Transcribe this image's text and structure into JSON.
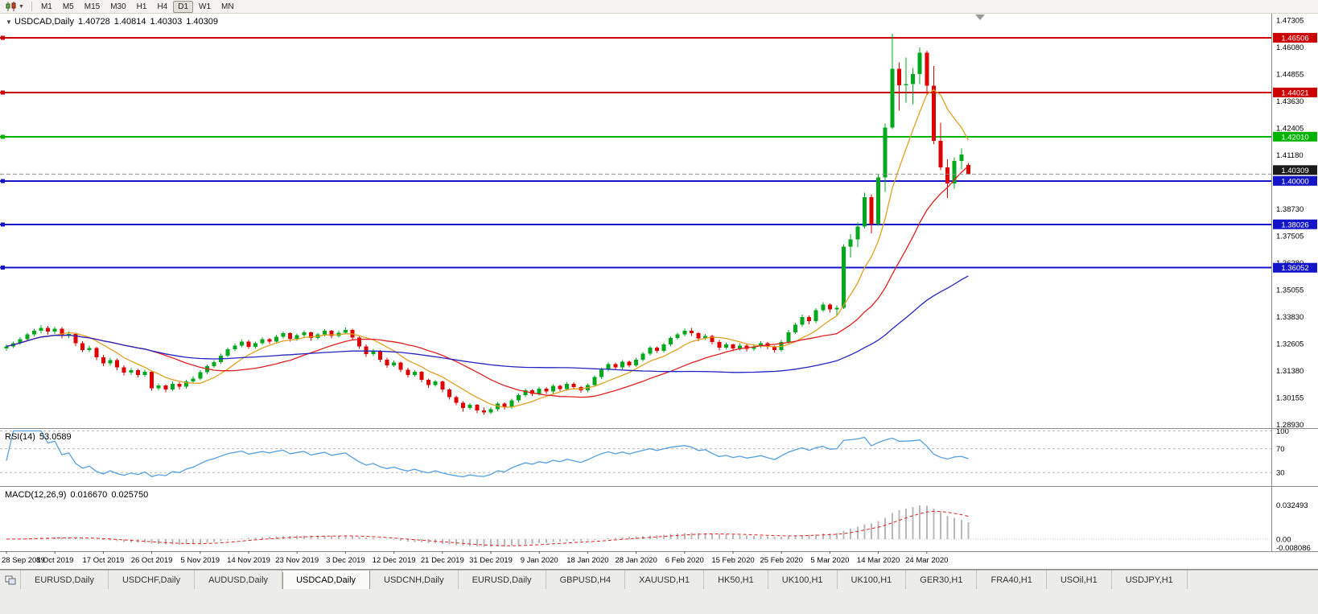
{
  "toolbar": {
    "timeframes": [
      "M1",
      "M5",
      "M15",
      "M30",
      "H1",
      "H4",
      "D1",
      "W1",
      "MN"
    ],
    "active": "D1"
  },
  "bottom_tabs": {
    "active_index": 3,
    "tabs": [
      "EURUSD,Daily",
      "USDCHF,Daily",
      "AUDUSD,Daily",
      "USDCAD,Daily",
      "USDCNH,Daily",
      "EURUSD,Daily",
      "GBPUSD,H4",
      "XAUUSD,H1",
      "HK50,H1",
      "UK100,H1",
      "UK100,H1",
      "GER30,H1",
      "FRA40,H1",
      "USOil,H1",
      "USDJPY,H1"
    ]
  },
  "chart_data": {
    "type": "candlestick",
    "symbol": "USDCAD",
    "timeframe": "Daily",
    "title": {
      "symbol": "USDCAD,Daily",
      "open": "1.40728",
      "high": "1.40814",
      "low": "1.40303",
      "close": "1.40309"
    },
    "up_color": "#00A81E",
    "down_color": "#E00000",
    "price_scale": {
      "min": 1.288,
      "max": 1.476
    },
    "price_axis_labels": [
      "1.47305",
      "1.46080",
      "1.44855",
      "1.43630",
      "1.42405",
      "1.41180",
      "1.39955",
      "1.38730",
      "1.37505",
      "1.36280",
      "1.35055",
      "1.33830",
      "1.32605",
      "1.31380",
      "1.30155",
      "1.28930"
    ],
    "hlines": [
      {
        "price": 1.46506,
        "label": "1.46506",
        "color": "#CC0000"
      },
      {
        "price": 1.44021,
        "label": "1.44021",
        "color": "#CC0000"
      },
      {
        "price": 1.4201,
        "label": "1.42010",
        "color": "#00B400"
      },
      {
        "price": 1.4,
        "label": "1.40000",
        "color": "#1414C8"
      },
      {
        "price": 1.38026,
        "label": "1.38026",
        "color": "#1414C8"
      },
      {
        "price": 1.36052,
        "label": "1.36052",
        "color": "#1414C8"
      }
    ],
    "current_price": {
      "price": 1.40309,
      "label": "1.40309",
      "badge_color": "#1A1A1A",
      "line_color": "#909090"
    },
    "moving_averages": [
      {
        "period": 8,
        "color": "#E0A020",
        "name": "fast-ma"
      },
      {
        "period": 21,
        "color": "#E02020",
        "name": "mid-ma"
      },
      {
        "period": 55,
        "color": "#2424C0",
        "name": "slow-ma"
      }
    ],
    "bars_per_label": 7,
    "time_axis_labels": [
      "28 Sep 2019",
      "8 Oct 2019",
      "17 Oct 2019",
      "26 Oct 2019",
      "5 Nov 2019",
      "14 Nov 2019",
      "23 Nov 2019",
      "3 Dec 2019",
      "12 Dec 2019",
      "21 Dec 2019",
      "31 Dec 2019",
      "9 Jan 2020",
      "18 Jan 2020",
      "28 Jan 2020",
      "6 Feb 2020",
      "15 Feb 2020",
      "25 Feb 2020",
      "5 Mar 2020",
      "14 Mar 2020",
      "24 Mar 2020"
    ],
    "rsi": {
      "name": "RSI(14)",
      "value": "53.0589",
      "period": 14,
      "color": "#55A0E0",
      "levels": [
        100,
        70,
        30
      ],
      "scale": {
        "min": 10,
        "max": 102
      }
    },
    "macd": {
      "name": "MACD(12,26,9)",
      "value_main": "0.016670",
      "value_signal": "0.025750",
      "fast": 12,
      "slow": 26,
      "signal": 9,
      "hist_color": "#B8B8B8",
      "signal_color": "#E02020",
      "axis_labels": {
        "max": "0.032493",
        "zero": "0.00",
        "min": "-0.008086"
      },
      "scale": {
        "min": -0.01,
        "max": 0.049
      }
    },
    "candles": [
      [
        1.3238,
        1.3256,
        1.3228,
        1.3248
      ],
      [
        1.3248,
        1.327,
        1.324,
        1.3262
      ],
      [
        1.3262,
        1.329,
        1.3254,
        1.3281
      ],
      [
        1.3281,
        1.331,
        1.3272,
        1.3302
      ],
      [
        1.3302,
        1.3328,
        1.3294,
        1.3318
      ],
      [
        1.3318,
        1.3344,
        1.3308,
        1.3332
      ],
      [
        1.3332,
        1.334,
        1.33,
        1.3315
      ],
      [
        1.3315,
        1.3338,
        1.3305,
        1.3328
      ],
      [
        1.3328,
        1.3336,
        1.3284,
        1.3296
      ],
      [
        1.3296,
        1.3316,
        1.3286,
        1.3305
      ],
      [
        1.3305,
        1.331,
        1.325,
        1.3262
      ],
      [
        1.3262,
        1.3272,
        1.3222,
        1.3232
      ],
      [
        1.3232,
        1.3252,
        1.3222,
        1.3241
      ],
      [
        1.3241,
        1.3246,
        1.3186,
        1.3198
      ],
      [
        1.3198,
        1.321,
        1.3158,
        1.317
      ],
      [
        1.317,
        1.3196,
        1.316,
        1.3186
      ],
      [
        1.3186,
        1.3192,
        1.314,
        1.3152
      ],
      [
        1.3152,
        1.3162,
        1.3116,
        1.3128
      ],
      [
        1.3128,
        1.315,
        1.3118,
        1.314
      ],
      [
        1.314,
        1.3146,
        1.3106,
        1.3118
      ],
      [
        1.3118,
        1.3142,
        1.3108,
        1.3132
      ],
      [
        1.3132,
        1.3138,
        1.3046,
        1.3058
      ],
      [
        1.3058,
        1.308,
        1.3048,
        1.307
      ],
      [
        1.307,
        1.3076,
        1.304,
        1.3052
      ],
      [
        1.3052,
        1.3088,
        1.3044,
        1.3078
      ],
      [
        1.3078,
        1.3084,
        1.3052,
        1.3064
      ],
      [
        1.3064,
        1.3096,
        1.3056,
        1.3088
      ],
      [
        1.3088,
        1.3112,
        1.308,
        1.3102
      ],
      [
        1.3102,
        1.314,
        1.3094,
        1.313
      ],
      [
        1.313,
        1.3166,
        1.3122,
        1.3158
      ],
      [
        1.3158,
        1.3186,
        1.315,
        1.3176
      ],
      [
        1.3176,
        1.3214,
        1.3168,
        1.3205
      ],
      [
        1.3205,
        1.3242,
        1.3198,
        1.3234
      ],
      [
        1.3234,
        1.326,
        1.3226,
        1.3252
      ],
      [
        1.3252,
        1.3278,
        1.3244,
        1.327
      ],
      [
        1.327,
        1.3276,
        1.3236,
        1.3246
      ],
      [
        1.3246,
        1.327,
        1.3238,
        1.3262
      ],
      [
        1.3262,
        1.329,
        1.3254,
        1.3281
      ],
      [
        1.3281,
        1.3286,
        1.3258,
        1.327
      ],
      [
        1.327,
        1.33,
        1.3262,
        1.3292
      ],
      [
        1.3292,
        1.3316,
        1.3284,
        1.3308
      ],
      [
        1.3308,
        1.3312,
        1.327,
        1.3282
      ],
      [
        1.3282,
        1.3306,
        1.3274,
        1.3298
      ],
      [
        1.3298,
        1.332,
        1.329,
        1.3312
      ],
      [
        1.3312,
        1.3316,
        1.3274,
        1.3286
      ],
      [
        1.3286,
        1.331,
        1.3278,
        1.3302
      ],
      [
        1.3302,
        1.3326,
        1.3294,
        1.3318
      ],
      [
        1.3318,
        1.3322,
        1.3284,
        1.3296
      ],
      [
        1.3296,
        1.3318,
        1.3288,
        1.331
      ],
      [
        1.331,
        1.3334,
        1.3302,
        1.3322
      ],
      [
        1.3322,
        1.3328,
        1.3276,
        1.3288
      ],
      [
        1.3288,
        1.3294,
        1.3236,
        1.3248
      ],
      [
        1.3248,
        1.3256,
        1.32,
        1.3212
      ],
      [
        1.3212,
        1.3236,
        1.3204,
        1.3228
      ],
      [
        1.3228,
        1.3232,
        1.3176,
        1.3188
      ],
      [
        1.3188,
        1.3196,
        1.315,
        1.3162
      ],
      [
        1.3162,
        1.3184,
        1.3154,
        1.3174
      ],
      [
        1.3174,
        1.3178,
        1.313,
        1.3142
      ],
      [
        1.3142,
        1.315,
        1.3106,
        1.3118
      ],
      [
        1.3118,
        1.314,
        1.311,
        1.3132
      ],
      [
        1.3132,
        1.3136,
        1.3084,
        1.3096
      ],
      [
        1.3096,
        1.3102,
        1.306,
        1.3072
      ],
      [
        1.3072,
        1.3096,
        1.3064,
        1.3088
      ],
      [
        1.3088,
        1.3092,
        1.304,
        1.3052
      ],
      [
        1.3052,
        1.3058,
        1.3006,
        1.3018
      ],
      [
        1.3018,
        1.3024,
        1.298,
        1.2992
      ],
      [
        1.2992,
        1.2998,
        1.2952,
        1.2968
      ],
      [
        1.2968,
        1.299,
        1.296,
        1.2982
      ],
      [
        1.2982,
        1.2986,
        1.2944,
        1.2956
      ],
      [
        1.2956,
        1.297,
        1.2936,
        1.2948
      ],
      [
        1.2948,
        1.2972,
        1.294,
        1.2962
      ],
      [
        1.2962,
        1.2996,
        1.2954,
        1.2988
      ],
      [
        1.2988,
        1.2994,
        1.296,
        1.2972
      ],
      [
        1.2972,
        1.301,
        1.2964,
        1.3002
      ],
      [
        1.3002,
        1.3034,
        1.2994,
        1.3026
      ],
      [
        1.3026,
        1.3056,
        1.3018,
        1.3048
      ],
      [
        1.3048,
        1.3054,
        1.3022,
        1.3032
      ],
      [
        1.3032,
        1.3064,
        1.3024,
        1.3056
      ],
      [
        1.3056,
        1.3062,
        1.3032,
        1.3042
      ],
      [
        1.3042,
        1.3076,
        1.3034,
        1.3068
      ],
      [
        1.3068,
        1.3074,
        1.3044,
        1.3054
      ],
      [
        1.3054,
        1.3086,
        1.3046,
        1.3078
      ],
      [
        1.3078,
        1.3084,
        1.3052,
        1.3062
      ],
      [
        1.3062,
        1.3068,
        1.3038,
        1.3048
      ],
      [
        1.3048,
        1.308,
        1.304,
        1.3072
      ],
      [
        1.3072,
        1.3116,
        1.3064,
        1.3108
      ],
      [
        1.3108,
        1.315,
        1.31,
        1.3142
      ],
      [
        1.3142,
        1.3176,
        1.3134,
        1.3168
      ],
      [
        1.3168,
        1.3174,
        1.3142,
        1.3152
      ],
      [
        1.3152,
        1.3186,
        1.3144,
        1.3178
      ],
      [
        1.3178,
        1.3184,
        1.3152,
        1.3162
      ],
      [
        1.3162,
        1.3196,
        1.3154,
        1.3188
      ],
      [
        1.3188,
        1.3222,
        1.318,
        1.3214
      ],
      [
        1.3214,
        1.325,
        1.3206,
        1.3242
      ],
      [
        1.3242,
        1.3248,
        1.3218,
        1.3228
      ],
      [
        1.3228,
        1.3264,
        1.322,
        1.3256
      ],
      [
        1.3256,
        1.3294,
        1.3248,
        1.3286
      ],
      [
        1.3286,
        1.331,
        1.3278,
        1.3302
      ],
      [
        1.3302,
        1.333,
        1.3294,
        1.3318
      ],
      [
        1.3318,
        1.3332,
        1.3296,
        1.3308
      ],
      [
        1.3308,
        1.3314,
        1.3272,
        1.3284
      ],
      [
        1.3284,
        1.3304,
        1.3276,
        1.3296
      ],
      [
        1.3296,
        1.33,
        1.3256,
        1.3268
      ],
      [
        1.3268,
        1.3276,
        1.323,
        1.3242
      ],
      [
        1.3242,
        1.3266,
        1.3234,
        1.3256
      ],
      [
        1.3256,
        1.326,
        1.3226,
        1.3238
      ],
      [
        1.3238,
        1.3262,
        1.323,
        1.3252
      ],
      [
        1.3252,
        1.3258,
        1.3224,
        1.3236
      ],
      [
        1.3236,
        1.3258,
        1.3228,
        1.3248
      ],
      [
        1.3248,
        1.3272,
        1.324,
        1.3262
      ],
      [
        1.3262,
        1.3268,
        1.3234,
        1.3246
      ],
      [
        1.3246,
        1.3252,
        1.322,
        1.3232
      ],
      [
        1.3232,
        1.3276,
        1.3224,
        1.3268
      ],
      [
        1.3268,
        1.3322,
        1.326,
        1.3312
      ],
      [
        1.3312,
        1.3356,
        1.3304,
        1.3346
      ],
      [
        1.3346,
        1.3392,
        1.3338,
        1.3382
      ],
      [
        1.3382,
        1.3388,
        1.3348,
        1.3362
      ],
      [
        1.3362,
        1.3422,
        1.3354,
        1.3412
      ],
      [
        1.3412,
        1.3448,
        1.3404,
        1.3438
      ],
      [
        1.3438,
        1.3444,
        1.3402,
        1.3416
      ],
      [
        1.3416,
        1.3434,
        1.3388,
        1.3424
      ],
      [
        1.3424,
        1.3712,
        1.3418,
        1.3702
      ],
      [
        1.3702,
        1.3758,
        1.3652,
        1.3734
      ],
      [
        1.3734,
        1.381,
        1.37,
        1.3792
      ],
      [
        1.3792,
        1.3946,
        1.3784,
        1.3926
      ],
      [
        1.3926,
        1.3938,
        1.3762,
        1.3804
      ],
      [
        1.3804,
        1.4028,
        1.3796,
        1.4015
      ],
      [
        1.4015,
        1.426,
        1.395,
        1.4242
      ],
      [
        1.4242,
        1.4668,
        1.4236,
        1.451
      ],
      [
        1.451,
        1.4538,
        1.432,
        1.4435
      ],
      [
        1.4435,
        1.456,
        1.4356,
        1.444
      ],
      [
        1.444,
        1.4514,
        1.4348,
        1.4486
      ],
      [
        1.4486,
        1.4606,
        1.444,
        1.4582
      ],
      [
        1.4582,
        1.4592,
        1.4388,
        1.4432
      ],
      [
        1.4432,
        1.4522,
        1.4168,
        1.4182
      ],
      [
        1.4182,
        1.4264,
        1.4048,
        1.4062
      ],
      [
        1.4062,
        1.4098,
        1.3922,
        1.3988
      ],
      [
        1.3988,
        1.4108,
        1.3964,
        1.409
      ],
      [
        1.409,
        1.4148,
        1.4052,
        1.412
      ],
      [
        1.40728,
        1.40814,
        1.40303,
        1.40309
      ]
    ]
  }
}
